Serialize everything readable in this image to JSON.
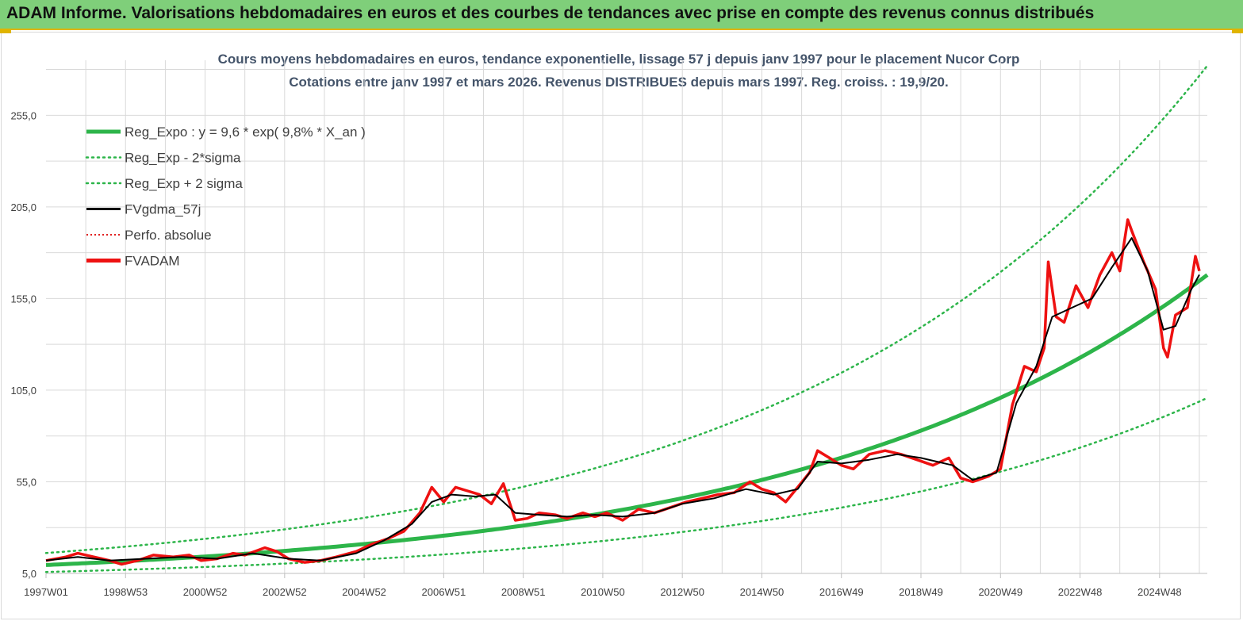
{
  "header": {
    "title": "ADAM Informe. Valorisations hebdomadaires en euros et des courbes de tendances avec prise en compte des revenus connus distribués"
  },
  "colors": {
    "header_bg": "#7fcf7a",
    "accent": "#e0b400",
    "trend": "#2db54a",
    "band": "#2db54a",
    "smooth": "#000000",
    "perf": "#e02020",
    "fvadam": "#ee1111",
    "grid": "#d9d9d9"
  },
  "chart_data": {
    "type": "line",
    "title_line1": "Cours moyens hebdomadaires en euros, tendance exponentielle, lissage 57 j depuis janv 1997 pour le placement Nucor Corp",
    "title_line2": "Cotations entre janv 1997 et mars 2026. Revenus DISTRIBUES depuis mars 1997. Reg. croiss. : 19,9/20.",
    "x_range": [
      1997.0,
      2026.2
    ],
    "ylim": [
      5,
      285
    ],
    "y_ticks": [
      "5,0",
      "55,0",
      "105,0",
      "155,0",
      "205,0",
      "255,0"
    ],
    "y_tick_values": [
      5,
      55,
      105,
      155,
      205,
      255
    ],
    "x_ticks": [
      {
        "label": "1997W01",
        "x": 1997.0
      },
      {
        "label": "1998W53",
        "x": 1999.0
      },
      {
        "label": "2000W52",
        "x": 2001.0
      },
      {
        "label": "2002W52",
        "x": 2003.0
      },
      {
        "label": "2004W52",
        "x": 2005.0
      },
      {
        "label": "2006W51",
        "x": 2007.0
      },
      {
        "label": "2008W51",
        "x": 2009.0
      },
      {
        "label": "2010W50",
        "x": 2011.0
      },
      {
        "label": "2012W50",
        "x": 2013.0
      },
      {
        "label": "2014W50",
        "x": 2015.0
      },
      {
        "label": "2016W49",
        "x": 2017.0
      },
      {
        "label": "2018W49",
        "x": 2019.0
      },
      {
        "label": "2020W49",
        "x": 2021.0
      },
      {
        "label": "2022W48",
        "x": 2023.0
      },
      {
        "label": "2024W48",
        "x": 2025.0
      }
    ],
    "grid": true,
    "legend_position": "top-left",
    "regression": {
      "a": 9.6,
      "rate": 0.098,
      "minus_factor": 0.6,
      "plus_factor": 1.68
    },
    "series": [
      {
        "name": "Reg_Expo : y = 9,6 * exp( 9,8% *  X_an )",
        "style": "solid-thick",
        "color": "#2db54a"
      },
      {
        "name": "Reg_Exp - 2*sigma",
        "style": "dotted",
        "color": "#2db54a"
      },
      {
        "name": "Reg_Exp + 2 sigma",
        "style": "dotted",
        "color": "#2db54a"
      },
      {
        "name": "FVgdma_57j",
        "style": "solid",
        "color": "#000000"
      },
      {
        "name": "Perfo. absolue",
        "style": "dotted",
        "color": "#e02020"
      },
      {
        "name": "FVADAM",
        "style": "solid-thick",
        "color": "#ee1111"
      }
    ],
    "fvadam_points": [
      [
        1997.0,
        12
      ],
      [
        1997.5,
        14
      ],
      [
        1997.8,
        16
      ],
      [
        1998.2,
        14
      ],
      [
        1998.6,
        12
      ],
      [
        1998.9,
        10
      ],
      [
        1999.3,
        12
      ],
      [
        1999.7,
        15
      ],
      [
        2000.2,
        14
      ],
      [
        2000.6,
        15
      ],
      [
        2000.9,
        12
      ],
      [
        2001.3,
        13
      ],
      [
        2001.7,
        16
      ],
      [
        2002.0,
        15
      ],
      [
        2002.5,
        19
      ],
      [
        2002.8,
        17
      ],
      [
        2003.1,
        13
      ],
      [
        2003.5,
        11
      ],
      [
        2003.9,
        12
      ],
      [
        2004.3,
        14
      ],
      [
        2004.8,
        17
      ],
      [
        2005.2,
        21
      ],
      [
        2005.6,
        24
      ],
      [
        2006.0,
        28
      ],
      [
        2006.4,
        38
      ],
      [
        2006.7,
        52
      ],
      [
        2007.0,
        44
      ],
      [
        2007.3,
        52
      ],
      [
        2007.6,
        50
      ],
      [
        2007.9,
        48
      ],
      [
        2008.2,
        43
      ],
      [
        2008.5,
        54
      ],
      [
        2008.8,
        34
      ],
      [
        2009.1,
        35
      ],
      [
        2009.4,
        38
      ],
      [
        2009.8,
        37
      ],
      [
        2010.1,
        35
      ],
      [
        2010.5,
        38
      ],
      [
        2010.8,
        36
      ],
      [
        2011.1,
        38
      ],
      [
        2011.5,
        34
      ],
      [
        2011.9,
        40
      ],
      [
        2012.3,
        38
      ],
      [
        2012.7,
        41
      ],
      [
        2013.1,
        44
      ],
      [
        2013.5,
        46
      ],
      [
        2013.9,
        48
      ],
      [
        2014.3,
        49
      ],
      [
        2014.7,
        55
      ],
      [
        2015.0,
        51
      ],
      [
        2015.3,
        49
      ],
      [
        2015.6,
        44
      ],
      [
        2015.9,
        52
      ],
      [
        2016.2,
        60
      ],
      [
        2016.4,
        72
      ],
      [
        2016.7,
        68
      ],
      [
        2017.0,
        64
      ],
      [
        2017.3,
        62
      ],
      [
        2017.7,
        70
      ],
      [
        2018.1,
        72
      ],
      [
        2018.5,
        70
      ],
      [
        2018.9,
        67
      ],
      [
        2019.3,
        64
      ],
      [
        2019.7,
        68
      ],
      [
        2020.0,
        57
      ],
      [
        2020.3,
        55
      ],
      [
        2020.7,
        58
      ],
      [
        2021.0,
        62
      ],
      [
        2021.3,
        97
      ],
      [
        2021.6,
        118
      ],
      [
        2021.9,
        115
      ],
      [
        2022.1,
        128
      ],
      [
        2022.2,
        175
      ],
      [
        2022.4,
        145
      ],
      [
        2022.6,
        142
      ],
      [
        2022.9,
        162
      ],
      [
        2023.2,
        150
      ],
      [
        2023.5,
        168
      ],
      [
        2023.8,
        180
      ],
      [
        2024.0,
        170
      ],
      [
        2024.2,
        198
      ],
      [
        2024.3,
        192
      ],
      [
        2024.6,
        175
      ],
      [
        2024.9,
        160
      ],
      [
        2025.1,
        128
      ],
      [
        2025.2,
        123
      ],
      [
        2025.4,
        146
      ],
      [
        2025.7,
        150
      ],
      [
        2025.9,
        178
      ],
      [
        2026.0,
        170
      ]
    ],
    "smoothed_points": [
      [
        1997.0,
        12
      ],
      [
        1997.8,
        14
      ],
      [
        1998.6,
        12
      ],
      [
        1999.5,
        13
      ],
      [
        2000.4,
        14
      ],
      [
        2001.3,
        13
      ],
      [
        2002.2,
        16
      ],
      [
        2003.1,
        13
      ],
      [
        2003.9,
        12
      ],
      [
        2004.8,
        16
      ],
      [
        2005.5,
        23
      ],
      [
        2006.2,
        32
      ],
      [
        2006.7,
        44
      ],
      [
        2007.2,
        48
      ],
      [
        2007.8,
        47
      ],
      [
        2008.3,
        48
      ],
      [
        2008.8,
        38
      ],
      [
        2009.4,
        37
      ],
      [
        2010.1,
        36
      ],
      [
        2010.8,
        37
      ],
      [
        2011.5,
        36
      ],
      [
        2012.3,
        38
      ],
      [
        2013.0,
        43
      ],
      [
        2013.8,
        46
      ],
      [
        2014.6,
        51
      ],
      [
        2015.3,
        48
      ],
      [
        2015.9,
        51
      ],
      [
        2016.4,
        66
      ],
      [
        2017.0,
        65
      ],
      [
        2017.7,
        67
      ],
      [
        2018.4,
        70
      ],
      [
        2019.0,
        68
      ],
      [
        2019.8,
        64
      ],
      [
        2020.3,
        56
      ],
      [
        2020.9,
        60
      ],
      [
        2021.4,
        98
      ],
      [
        2021.9,
        118
      ],
      [
        2022.3,
        145
      ],
      [
        2022.8,
        150
      ],
      [
        2023.3,
        155
      ],
      [
        2023.8,
        172
      ],
      [
        2024.3,
        188
      ],
      [
        2024.7,
        170
      ],
      [
        2025.1,
        138
      ],
      [
        2025.4,
        140
      ],
      [
        2025.8,
        160
      ],
      [
        2026.0,
        168
      ]
    ]
  }
}
